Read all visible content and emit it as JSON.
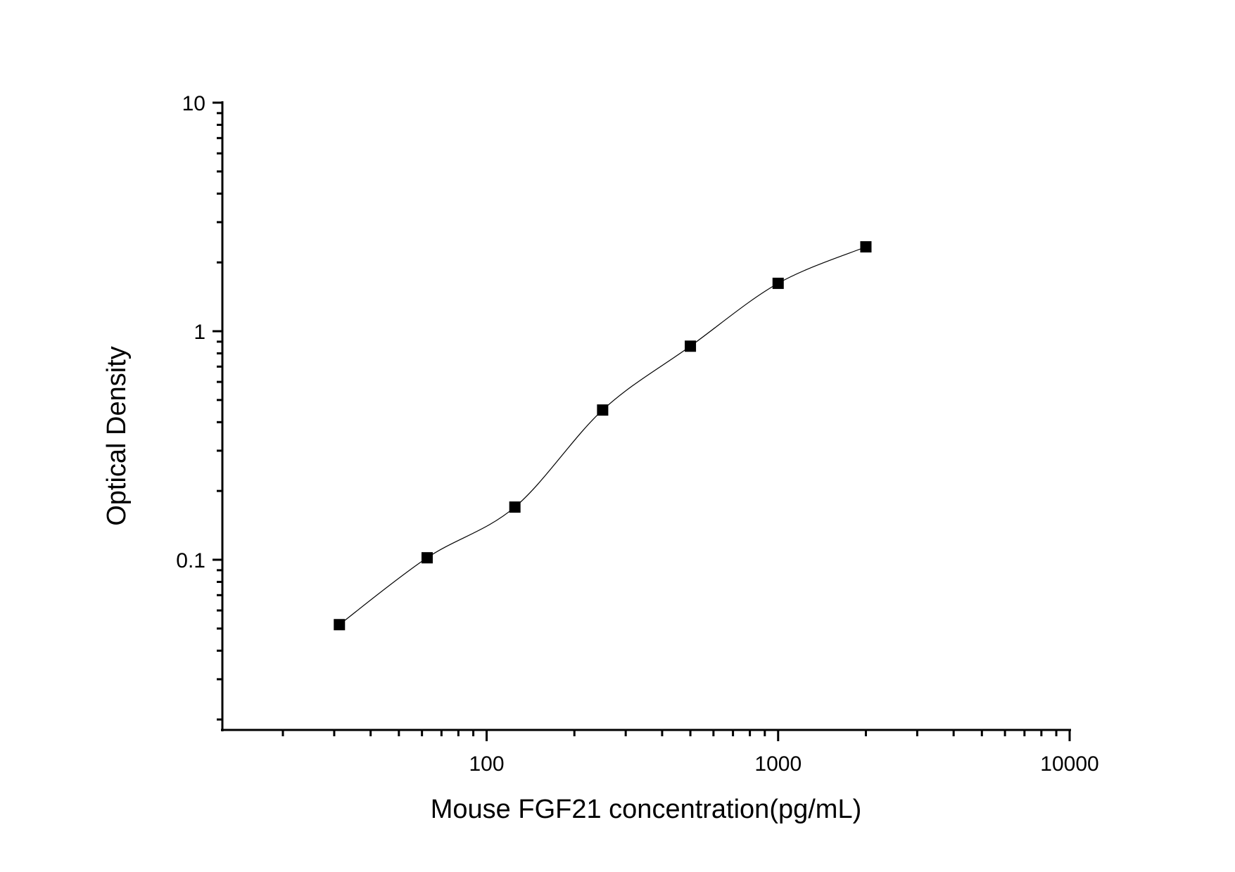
{
  "chart_data": {
    "type": "scatter",
    "title": "",
    "xlabel": "Mouse FGF21 concentration(pg/mL)",
    "ylabel": "Optical Density",
    "x_scale": "log",
    "y_scale": "log",
    "xlim": [
      12.4,
      10000
    ],
    "ylim": [
      0.018,
      10
    ],
    "x_ticks": [
      {
        "value": 100,
        "label": "100"
      },
      {
        "value": 1000,
        "label": "1000"
      },
      {
        "value": 10000,
        "label": "10000"
      }
    ],
    "y_ticks": [
      {
        "value": 0.1,
        "label": "0.1"
      },
      {
        "value": 1,
        "label": "1"
      },
      {
        "value": 10,
        "label": "10"
      }
    ],
    "grid": false,
    "marker": "square",
    "color": "#000000",
    "fit_curve": true,
    "x": [
      31.25,
      62.5,
      125,
      250,
      500,
      1000,
      2000
    ],
    "y": [
      0.052,
      0.102,
      0.17,
      0.452,
      0.86,
      1.62,
      2.34
    ]
  }
}
